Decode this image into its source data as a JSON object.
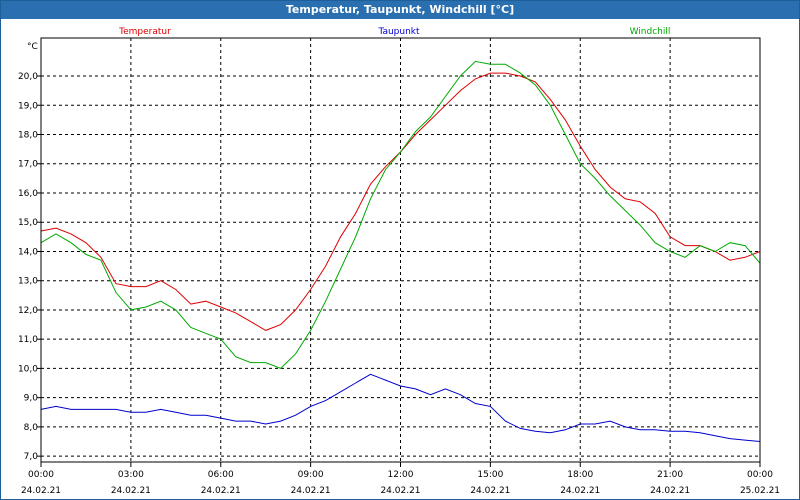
{
  "window": {
    "title": "Temperatur, Taupunkt, Windchill [°C]"
  },
  "chart_data": {
    "type": "line",
    "ylabel": "°C",
    "ylim": [
      6.8,
      21.3
    ],
    "yticks": [
      "7,0",
      "8,0",
      "9,0",
      "10,0",
      "11,0",
      "12,0",
      "13,0",
      "14,0",
      "15,0",
      "16,0",
      "17,0",
      "18,0",
      "19,0",
      "20,0"
    ],
    "xlim": [
      0,
      24
    ],
    "xticks": [
      {
        "time": "00:00",
        "date": "24.02.21"
      },
      {
        "time": "03:00",
        "date": "24.02.21"
      },
      {
        "time": "06:00",
        "date": "24.02.21"
      },
      {
        "time": "09:00",
        "date": "24.02.21"
      },
      {
        "time": "12:00",
        "date": "24.02.21"
      },
      {
        "time": "15:00",
        "date": "24.02.21"
      },
      {
        "time": "18:00",
        "date": "24.02.21"
      },
      {
        "time": "21:00",
        "date": "24.02.21"
      },
      {
        "time": "00:00",
        "date": "25.02.21"
      }
    ],
    "grid": true,
    "series": [
      {
        "name": "Temperatur",
        "color": "#dd0000",
        "x": [
          0,
          0.5,
          1,
          1.5,
          2,
          2.5,
          3,
          3.5,
          4,
          4.5,
          5,
          5.5,
          6,
          6.5,
          7,
          7.5,
          8,
          8.5,
          9,
          9.5,
          10,
          10.5,
          11,
          11.5,
          12,
          12.5,
          13,
          13.5,
          14,
          14.5,
          15,
          15.5,
          16,
          16.5,
          17,
          17.5,
          18,
          18.5,
          19,
          19.5,
          20,
          20.5,
          21,
          21.5,
          22,
          22.5,
          23,
          23.5,
          24
        ],
        "values": [
          14.7,
          14.8,
          14.6,
          14.3,
          13.8,
          12.9,
          12.8,
          12.8,
          13.0,
          12.7,
          12.2,
          12.3,
          12.1,
          11.9,
          11.6,
          11.3,
          11.5,
          12.0,
          12.7,
          13.5,
          14.5,
          15.3,
          16.3,
          16.9,
          17.4,
          18.0,
          18.5,
          19.0,
          19.5,
          19.9,
          20.1,
          20.1,
          20.0,
          19.8,
          19.2,
          18.5,
          17.6,
          16.8,
          16.2,
          15.8,
          15.7,
          15.3,
          14.5,
          14.2,
          14.2,
          14.0,
          13.7,
          13.8,
          14.0
        ]
      },
      {
        "name": "Taupunkt",
        "color": "#0000cc",
        "x": [
          0,
          0.5,
          1,
          1.5,
          2,
          2.5,
          3,
          3.5,
          4,
          4.5,
          5,
          5.5,
          6,
          6.5,
          7,
          7.5,
          8,
          8.5,
          9,
          9.5,
          10,
          10.5,
          11,
          11.5,
          12,
          12.5,
          13,
          13.5,
          14,
          14.5,
          15,
          15.5,
          16,
          16.5,
          17,
          17.5,
          18,
          18.5,
          19,
          19.5,
          20,
          20.5,
          21,
          21.5,
          22,
          22.5,
          23,
          23.5,
          24
        ],
        "values": [
          8.6,
          8.7,
          8.6,
          8.6,
          8.6,
          8.6,
          8.5,
          8.5,
          8.6,
          8.5,
          8.4,
          8.4,
          8.3,
          8.2,
          8.2,
          8.1,
          8.2,
          8.4,
          8.7,
          8.9,
          9.2,
          9.5,
          9.8,
          9.6,
          9.4,
          9.3,
          9.1,
          9.3,
          9.1,
          8.8,
          8.7,
          8.2,
          7.95,
          7.85,
          7.8,
          7.9,
          8.1,
          8.1,
          8.2,
          8.0,
          7.9,
          7.9,
          7.85,
          7.85,
          7.8,
          7.7,
          7.6,
          7.55,
          7.5
        ]
      },
      {
        "name": "Windchill",
        "color": "#00aa00",
        "x": [
          0,
          0.5,
          1,
          1.5,
          2,
          2.5,
          3,
          3.5,
          4,
          4.5,
          5,
          5.5,
          6,
          6.5,
          7,
          7.5,
          8,
          8.5,
          9,
          9.5,
          10,
          10.5,
          11,
          11.5,
          12,
          12.5,
          13,
          13.5,
          14,
          14.5,
          15,
          15.5,
          16,
          16.5,
          17,
          17.5,
          18,
          18.5,
          19,
          19.5,
          20,
          20.5,
          21,
          21.5,
          22,
          22.5,
          23,
          23.5,
          24
        ],
        "values": [
          14.3,
          14.6,
          14.3,
          13.9,
          13.7,
          12.6,
          12.0,
          12.1,
          12.3,
          12.0,
          11.4,
          11.2,
          11.0,
          10.4,
          10.2,
          10.2,
          10.0,
          10.5,
          11.3,
          12.3,
          13.4,
          14.5,
          15.8,
          16.8,
          17.4,
          18.1,
          18.6,
          19.3,
          20.0,
          20.5,
          20.4,
          20.4,
          20.1,
          19.7,
          19.0,
          18.0,
          17.0,
          16.5,
          15.9,
          15.4,
          14.9,
          14.3,
          14.0,
          13.8,
          14.2,
          14.0,
          14.3,
          14.2,
          13.6
        ]
      }
    ]
  }
}
